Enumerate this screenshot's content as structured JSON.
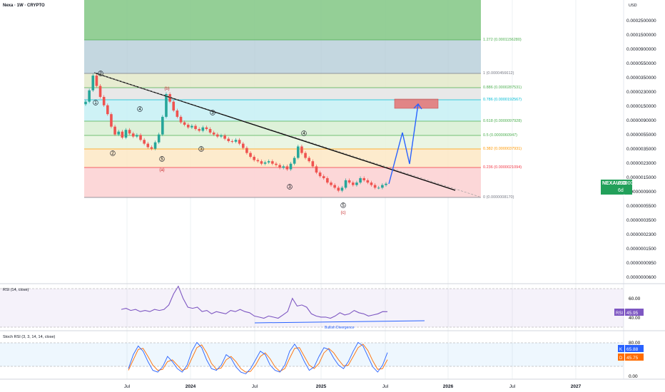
{
  "header": {
    "title": "Nexa · 1W · CRYPTO",
    "currency": "USD"
  },
  "price_tag": {
    "symbol": "NEXAUSD",
    "value": "0.0000012535",
    "countdown": "6d 16h"
  },
  "price_axis_labels": [
    "0.0002500000",
    "0.0001500000",
    "0.0000900000",
    "0.0000550000",
    "0.0000350000",
    "0.0000230000",
    "0.0000150000",
    "0.0000090000",
    "0.0000055000",
    "0.0000035000",
    "0.0000023000",
    "0.0000015000",
    "0.0000009000",
    "0.0000005500",
    "0.0000003500",
    "0.0000002300",
    "0.0000001500",
    "0.0000000950",
    "0.0000000600"
  ],
  "time_axis_labels": [
    "Jul",
    "2024",
    "Jul",
    "2025",
    "Jul",
    "2026",
    "Jul",
    "2027"
  ],
  "fib_levels": [
    {
      "ratio": "1.272",
      "label": "1.272 (0.0001156280)",
      "color": "#4caf50"
    },
    {
      "ratio": "1",
      "label": "1 (0.0000456612)",
      "color": "#787b86"
    },
    {
      "ratio": "0.886",
      "label": "0.886 (0.0000287531)",
      "color": "#4caf50"
    },
    {
      "ratio": "0.786",
      "label": "0.786 (0.0000192567)",
      "color": "#00bcd4"
    },
    {
      "ratio": "0.618",
      "label": "0.618 (0.0000097928)",
      "color": "#4caf50"
    },
    {
      "ratio": "0.5",
      "label": "0.5 (0.0000060947)",
      "color": "#4caf50"
    },
    {
      "ratio": "0.382",
      "label": "0.382 (0.0000037931)",
      "color": "#ff9800"
    },
    {
      "ratio": "0.236",
      "label": "0.236 (0.0000021094)",
      "color": "#f23645"
    },
    {
      "ratio": "0",
      "label": "0 (0.0000008170)",
      "color": "#787b86"
    }
  ],
  "wave_labels": {
    "w1": "1",
    "w2": "2",
    "w3": "3",
    "w4": "4",
    "w5": "5",
    "wa": "(a)",
    "wb": "(b)",
    "wc": "(c)",
    "s2": "2",
    "s3": "3",
    "s4": "4",
    "s5": "5",
    "lower3": "3",
    "lower4": "4",
    "lower5": "5"
  },
  "rsi_panel": {
    "title": "RSI (14, close)",
    "divergence_label": "Bullish Divergence",
    "badge_name": "RSI",
    "badge_value": "45.95",
    "axis": [
      "60.00",
      "40.00"
    ]
  },
  "stoch_panel": {
    "title": "Stoch RSI (3, 3, 14, 14, close)",
    "k_name": "K",
    "k_value": "65.88",
    "d_name": "D",
    "d_value": "45.75",
    "axis": [
      "80.00",
      "0.00"
    ]
  },
  "colors": {
    "up": "#26a69a",
    "down": "#ef5350",
    "trendline": "#000000",
    "projection": "#2962ff",
    "rsi": "#7e57c2",
    "k": "#2962ff",
    "d": "#ff6d00",
    "target_box": "#e57373",
    "price_tag": "#22a05a"
  },
  "chart_data": [
    {
      "type": "candlestick",
      "title": "Nexa · 1W · CRYPTO",
      "ylabel": "USD",
      "y_scale": "log",
      "ylim": [
        6e-08,
        0.00025
      ],
      "x_ticks": [
        "Jul",
        "2024",
        "Jul",
        "2025",
        "Jul",
        "2026",
        "Jul",
        "2027"
      ],
      "close_series": [
        1.8e-05,
        2.6e-05,
        4.2e-05,
        3e-05,
        2.1e-05,
        1.6e-05,
        1.2e-05,
        8e-06,
        6.2e-06,
        6.8e-06,
        5.6e-06,
        7.2e-06,
        6.4e-06,
        5.8e-06,
        6.1e-06,
        5.2e-06,
        4.6e-06,
        4.1e-06,
        3.9e-06,
        4.8e-06,
        6.2e-06,
        1.1e-05,
        2.3e-05,
        1.8e-05,
        1.35e-05,
        1.1e-05,
        9.2e-06,
        8.5e-06,
        7.8e-06,
        8.2e-06,
        7.4e-06,
        7e-06,
        7.8e-06,
        7.4e-06,
        6.6e-06,
        6.2e-06,
        5.8e-06,
        6e-06,
        5.4e-06,
        5e-06,
        4.9e-06,
        5.2e-06,
        4.6e-06,
        4e-06,
        3.4e-06,
        3e-06,
        2.7e-06,
        2.6e-06,
        2.4e-06,
        2.5e-06,
        2.6e-06,
        2.4e-06,
        2.3e-06,
        2.1e-06,
        2.2e-06,
        2e-06,
        2.4e-06,
        2.9e-06,
        4.2e-06,
        3.4e-06,
        2.9e-06,
        2.6e-06,
        2.2e-06,
        1.8e-06,
        1.6e-06,
        1.5e-06,
        1.3e-06,
        1.2e-06,
        1.1e-06,
        1e-06,
        1.1e-06,
        1.4e-06,
        1.3e-06,
        1.2e-06,
        1.3e-06,
        1.5e-06,
        1.4e-06,
        1.3e-06,
        1.2e-06,
        1.1e-06,
        1.1e-06,
        1.2e-06,
        1.2535e-06
      ],
      "projection": [
        1.2535e-06,
        4e-06,
        2e-06,
        1.65e-05
      ],
      "target_zone": [
        1.65e-05,
        2.05e-05
      ],
      "current_price": 1.2535e-06
    },
    {
      "type": "line",
      "title": "RSI (14, close)",
      "ylim": [
        30,
        70
      ],
      "series": [
        {
          "name": "RSI",
          "values": [
            48,
            49,
            47,
            48,
            46,
            47,
            46,
            48,
            47,
            48,
            52,
            62,
            69,
            58,
            50,
            49,
            50,
            46,
            47,
            44,
            46,
            45,
            44,
            47,
            46,
            48,
            46,
            45,
            42,
            41,
            40,
            42,
            41,
            40,
            43,
            46,
            58,
            51,
            52,
            50,
            44,
            42,
            41,
            41,
            40,
            42,
            45,
            43,
            44,
            47,
            45,
            44,
            42,
            43,
            44,
            46,
            45.95
          ]
        }
      ]
    },
    {
      "type": "line",
      "title": "Stoch RSI (3, 3, 14, 14, close)",
      "ylim": [
        0,
        100
      ],
      "series": [
        {
          "name": "K",
          "values": [
            20,
            60,
            85,
            70,
            40,
            15,
            10,
            25,
            55,
            40,
            20,
            10,
            30,
            70,
            95,
            80,
            45,
            20,
            15,
            30,
            60,
            50,
            25,
            10,
            5,
            20,
            45,
            70,
            60,
            30,
            15,
            10,
            30,
            70,
            90,
            70,
            40,
            15,
            25,
            55,
            80,
            75,
            50,
            30,
            20,
            40,
            70,
            95,
            85,
            55,
            25,
            10,
            30,
            65.88
          ]
        },
        {
          "name": "D",
          "values": [
            15,
            45,
            75,
            78,
            55,
            30,
            15,
            18,
            40,
            45,
            30,
            15,
            20,
            50,
            80,
            88,
            65,
            35,
            18,
            22,
            45,
            55,
            40,
            20,
            10,
            12,
            30,
            55,
            65,
            48,
            25,
            12,
            20,
            50,
            78,
            80,
            55,
            30,
            20,
            35,
            65,
            78,
            65,
            45,
            28,
            30,
            55,
            80,
            90,
            72,
            42,
            18,
            20,
            45.75
          ]
        }
      ]
    }
  ]
}
